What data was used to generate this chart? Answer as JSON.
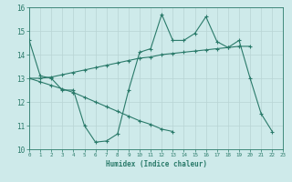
{
  "x": [
    0,
    1,
    2,
    3,
    4,
    5,
    6,
    7,
    8,
    9,
    10,
    11,
    12,
    13,
    14,
    15,
    16,
    17,
    18,
    19,
    20,
    21,
    22,
    23
  ],
  "line1": [
    14.6,
    13.1,
    13.0,
    12.5,
    12.5,
    11.0,
    10.3,
    10.35,
    10.65,
    12.5,
    14.1,
    14.25,
    15.7,
    14.6,
    14.6,
    14.9,
    15.6,
    14.55,
    14.3,
    14.6,
    13.0,
    11.5,
    10.75,
    null
  ],
  "line2": [
    13.0,
    13.0,
    13.05,
    13.15,
    13.25,
    13.35,
    13.45,
    13.55,
    13.65,
    13.75,
    13.85,
    13.9,
    14.0,
    14.05,
    14.1,
    14.15,
    14.2,
    14.25,
    14.3,
    14.35,
    14.35,
    null,
    null,
    null
  ],
  "line3": [
    13.0,
    12.85,
    12.7,
    12.55,
    12.4,
    12.2,
    12.0,
    11.8,
    11.6,
    11.4,
    11.2,
    11.05,
    10.85,
    10.75,
    null,
    null,
    null,
    null,
    null,
    null,
    null,
    null,
    null,
    null
  ],
  "color": "#2a7a6a",
  "bg_color": "#ceeaea",
  "grid_major_color": "#b8d4d4",
  "grid_minor_color": "#d8ecec",
  "xlabel": "Humidex (Indice chaleur)",
  "ylim": [
    10,
    16
  ],
  "xlim": [
    0,
    23
  ],
  "yticks": [
    10,
    11,
    12,
    13,
    14,
    15,
    16
  ],
  "xticks": [
    0,
    1,
    2,
    3,
    4,
    5,
    6,
    7,
    8,
    9,
    10,
    11,
    12,
    13,
    14,
    15,
    16,
    17,
    18,
    19,
    20,
    21,
    22,
    23
  ],
  "marker": "+",
  "markersize": 4
}
